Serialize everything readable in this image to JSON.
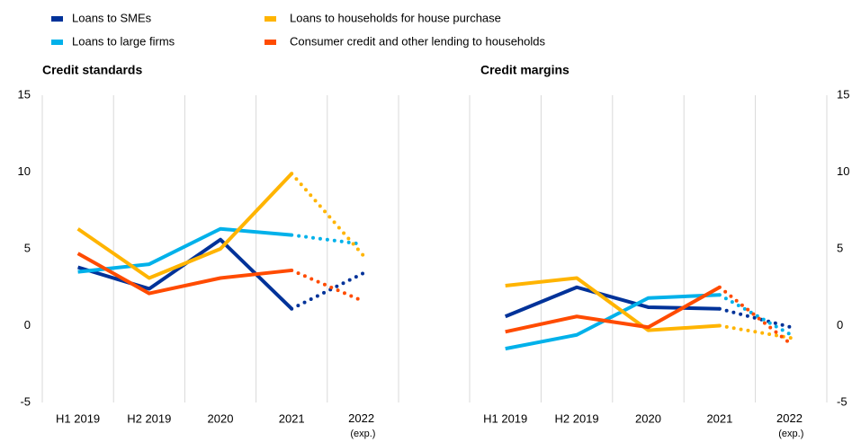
{
  "chart_data": [
    {
      "type": "line",
      "title": "Credit standards",
      "yaxis_side": "left",
      "categories": [
        "H1 2019",
        "H2 2019",
        "2020",
        "2021",
        "2022 (exp.)"
      ],
      "dotted_from": "2021",
      "ylim": [
        -5,
        15
      ],
      "yticks": [
        -5,
        0,
        5,
        10,
        15
      ],
      "series": [
        {
          "name": "Loans to SMEs",
          "color": "#003299",
          "values": [
            3.8,
            2.4,
            5.6,
            1.1,
            3.4
          ]
        },
        {
          "name": "Loans to large firms",
          "color": "#00b1ea",
          "values": [
            3.5,
            4.0,
            6.3,
            5.9,
            5.3
          ]
        },
        {
          "name": "Loans to households for house purchase",
          "color": "#ffb400",
          "values": [
            6.3,
            3.1,
            5.0,
            9.9,
            4.6
          ]
        },
        {
          "name": "Consumer credit and other lending to households",
          "color": "#ff4b00",
          "values": [
            4.7,
            2.1,
            3.1,
            3.6,
            1.6
          ]
        }
      ]
    },
    {
      "type": "line",
      "title": "Credit margins",
      "yaxis_side": "right",
      "categories": [
        "H1 2019",
        "H2 2019",
        "2020",
        "2021",
        "2022 (exp.)"
      ],
      "dotted_from": "2021",
      "ylim": [
        -5,
        15
      ],
      "yticks": [
        -5,
        0,
        5,
        10,
        15
      ],
      "series": [
        {
          "name": "Loans to SMEs",
          "color": "#003299",
          "values": [
            0.6,
            2.5,
            1.2,
            1.1,
            -0.1
          ]
        },
        {
          "name": "Loans to large firms",
          "color": "#00b1ea",
          "values": [
            -1.5,
            -0.6,
            1.8,
            2.0,
            -0.6
          ]
        },
        {
          "name": "Loans to households for house purchase",
          "color": "#ffb400",
          "values": [
            2.6,
            3.1,
            -0.3,
            0.0,
            -0.8
          ]
        },
        {
          "name": "Consumer credit and other lending to households",
          "color": "#ff4b00",
          "values": [
            -0.4,
            0.6,
            -0.1,
            2.5,
            -1.2
          ]
        }
      ]
    }
  ]
}
